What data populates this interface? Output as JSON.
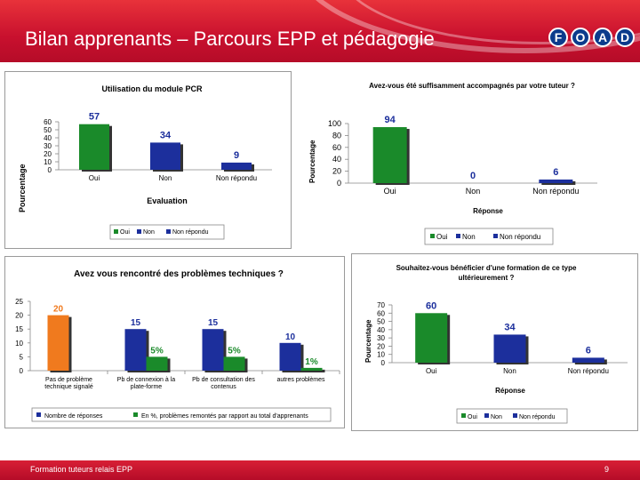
{
  "slide": {
    "title": "Bilan apprenants – Parcours EPP et pédagogie",
    "logo": [
      "F",
      "O",
      "A",
      "D"
    ],
    "footer_left": "Formation tuteurs relais EPP",
    "page_number": "9"
  },
  "charts": {
    "pcr": {
      "title": "Utilisation du module PCR",
      "ylabel": "Pourcentage",
      "xlabel": "Evaluation",
      "yticks": [
        "60",
        "50",
        "40",
        "30",
        "20",
        "10",
        "0"
      ],
      "categories": [
        "Oui",
        "Non",
        "Non répondu"
      ],
      "value_labels": [
        "57",
        "34",
        "9"
      ],
      "legend": [
        "Oui",
        "Non",
        "Non répondu"
      ]
    },
    "tuteur": {
      "title": "Avez-vous été suffisamment accompagnés par votre tuteur ?",
      "ylabel": "Pourcentage",
      "xlabel": "Réponse",
      "yticks": [
        "100",
        "80",
        "60",
        "40",
        "20",
        "0"
      ],
      "categories": [
        "Oui",
        "Non",
        "Non répondu"
      ],
      "value_labels": [
        "94",
        "0",
        "6"
      ],
      "legend": [
        "Oui",
        "Non",
        "Non répondu"
      ]
    },
    "techniques": {
      "title": "Avez vous rencontré des problèmes techniques ?",
      "yticks": [
        "25",
        "20",
        "15",
        "10",
        "5",
        "0"
      ],
      "categories": [
        [
          "Pas de problème",
          "technique signalé"
        ],
        [
          "Pb de connexion à la",
          "plate-forme"
        ],
        [
          "Pb de consultation des",
          "contenus"
        ],
        [
          "autres problèmes"
        ]
      ],
      "count_labels": [
        "20",
        "15",
        "15",
        "10"
      ],
      "pct_labels": [
        "",
        "5%",
        "5%",
        "1%"
      ],
      "legend": [
        "Nombre de réponses",
        "En %, problèmes remontés par rapport au total d'apprenants"
      ]
    },
    "formation": {
      "title_lines": [
        "Souhaitez-vous bénéficier d'une formation de ce type",
        "ultérieurement ?"
      ],
      "ylabel": "Pourcentage",
      "xlabel": "Réponse",
      "yticks": [
        "70",
        "60",
        "50",
        "40",
        "30",
        "20",
        "10",
        "0"
      ],
      "categories": [
        "Oui",
        "Non",
        "Non répondu"
      ],
      "value_labels": [
        "60",
        "34",
        "6"
      ],
      "legend": [
        "Oui",
        "Non",
        "Non répondu"
      ]
    }
  },
  "chart_data": [
    {
      "type": "bar",
      "title": "Utilisation du module PCR",
      "xlabel": "Evaluation",
      "ylabel": "Pourcentage",
      "categories": [
        "Oui",
        "Non",
        "Non répondu"
      ],
      "values": [
        57,
        34,
        9
      ],
      "ylim": [
        0,
        60
      ],
      "colors": [
        "#1a8a2a",
        "#1c2f9c",
        "#1c2f9c"
      ],
      "legend": "bottom"
    },
    {
      "type": "bar",
      "title": "Avez-vous été suffisamment accompagnés par votre tuteur ?",
      "xlabel": "Réponse",
      "ylabel": "Pourcentage",
      "categories": [
        "Oui",
        "Non",
        "Non répondu"
      ],
      "values": [
        94,
        0,
        6
      ],
      "ylim": [
        0,
        100
      ],
      "colors": [
        "#1a8a2a",
        "#1c2f9c",
        "#1c2f9c"
      ],
      "legend": "bottom"
    },
    {
      "type": "bar",
      "title": "Avez vous rencontré des problèmes techniques ?",
      "categories": [
        "Pas de problème technique signalé",
        "Pb de connexion à la plate-forme",
        "Pb de consultation des contenus",
        "autres problèmes"
      ],
      "series": [
        {
          "name": "Nombre de réponses",
          "values": [
            20,
            15,
            15,
            10
          ]
        },
        {
          "name": "En %, problèmes remontés par rapport au total d'apprenants",
          "values": [
            null,
            5,
            5,
            1
          ]
        }
      ],
      "ylim": [
        0,
        25
      ],
      "colors": [
        "#f07a1e",
        "#1c2f9c",
        "#1a8a2a"
      ],
      "legend": "bottom"
    },
    {
      "type": "bar",
      "title": "Souhaitez-vous bénéficier d'une formation de ce type ultérieurement ?",
      "xlabel": "Réponse",
      "ylabel": "Pourcentage",
      "categories": [
        "Oui",
        "Non",
        "Non répondu"
      ],
      "values": [
        60,
        34,
        6
      ],
      "ylim": [
        0,
        70
      ],
      "colors": [
        "#1a8a2a",
        "#1c2f9c",
        "#1c2f9c"
      ],
      "legend": "bottom"
    }
  ]
}
